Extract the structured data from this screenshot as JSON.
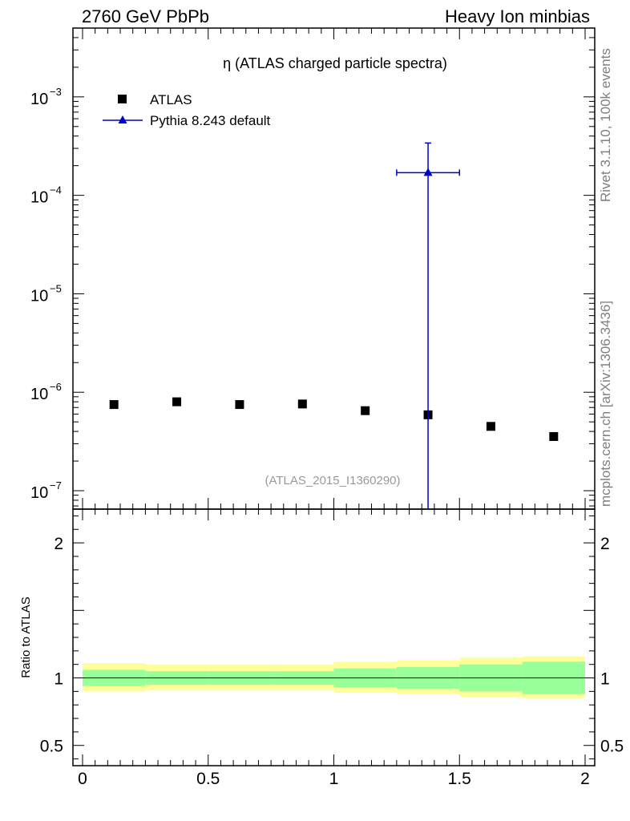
{
  "header": {
    "left": "2760 GeV PbPb",
    "right": "Heavy Ion minbias"
  },
  "side_labels": {
    "rivet": "Rivet 3.1.10,  100k events",
    "mcplots": "mcplots.cern.ch [arXiv:1306.3436]"
  },
  "chart_data": [
    {
      "type": "scatter",
      "title": "η (ATLAS charged particle spectra)",
      "analysis_tag": "(ATLAS_2015_I1360290)",
      "yscale": "log",
      "xlim": [
        0,
        2
      ],
      "ylim": [
        6.5e-08,
        0.005
      ],
      "grid": false,
      "legend_position": "top-left",
      "y_tick_labels": [
        {
          "value": 0.001,
          "base": "10",
          "exp": "−3"
        },
        {
          "value": 0.0001,
          "base": "10",
          "exp": "−4"
        },
        {
          "value": 1e-05,
          "base": "10",
          "exp": "−5"
        },
        {
          "value": 1e-06,
          "base": "10",
          "exp": "−6"
        },
        {
          "value": 1e-07,
          "base": "10",
          "exp": "−7"
        }
      ],
      "series": [
        {
          "name": "ATLAS",
          "marker": "square",
          "color": "#000000",
          "x": [
            0.125,
            0.375,
            0.625,
            0.875,
            1.125,
            1.375,
            1.625,
            1.875
          ],
          "y": [
            7.5e-07,
            8e-07,
            7.5e-07,
            7.6e-07,
            6.5e-07,
            5.9e-07,
            4.5e-07,
            3.55e-07
          ]
        },
        {
          "name": "Pythia 8.243 default",
          "marker": "triangle",
          "color": "#0000cc",
          "x": [
            1.375
          ],
          "y": [
            0.00017
          ],
          "xerr": [
            [
              1.25,
              1.5
            ]
          ],
          "yerr": [
            [
              1e-09,
              0.00034
            ]
          ]
        }
      ]
    },
    {
      "type": "area",
      "ylabel": "Ratio to ATLAS",
      "xlim": [
        0,
        2
      ],
      "ylim": [
        0.35,
        2.25
      ],
      "x_tick_labels": [
        "0",
        "0.5",
        "1",
        "1.5",
        "2"
      ],
      "y_tick_labels": [
        "0.5",
        "1",
        "2"
      ],
      "y_ticks": [
        0.5,
        1,
        2
      ],
      "reference_line": 1,
      "bins": [
        0,
        0.25,
        0.5,
        0.75,
        1.0,
        1.25,
        1.5,
        1.75,
        2.0
      ],
      "inner_band": {
        "color": "#99ff99",
        "low": [
          0.94,
          0.95,
          0.95,
          0.95,
          0.93,
          0.92,
          0.9,
          0.88
        ],
        "high": [
          1.06,
          1.05,
          1.05,
          1.05,
          1.07,
          1.08,
          1.1,
          1.12
        ]
      },
      "outer_band": {
        "color": "#ffff99",
        "low": [
          0.9,
          0.91,
          0.91,
          0.91,
          0.89,
          0.88,
          0.86,
          0.85
        ],
        "high": [
          1.11,
          1.1,
          1.1,
          1.1,
          1.12,
          1.13,
          1.15,
          1.16
        ]
      }
    }
  ]
}
